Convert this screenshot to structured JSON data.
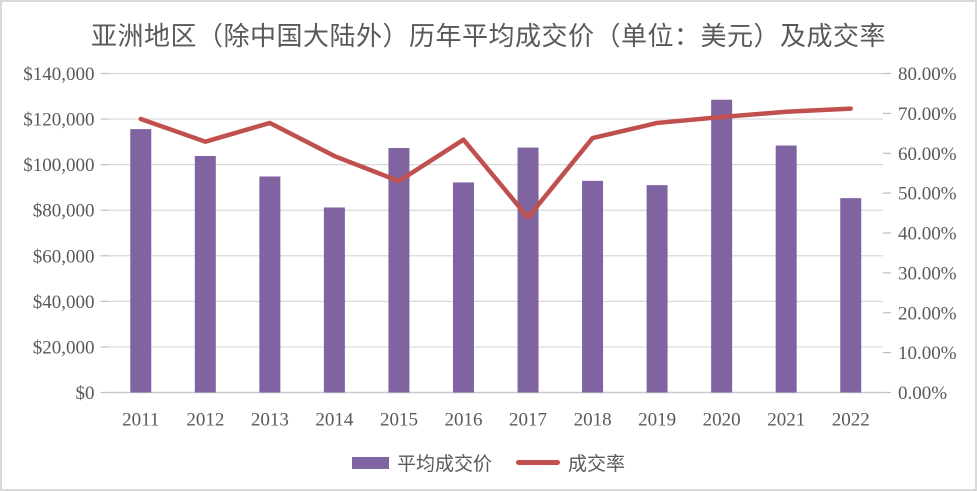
{
  "chart_data": {
    "type": "bar",
    "subtype": "combo-bar-line",
    "title": "亚洲地区（除中国大陆外）历年平均成交价（单位：美元）及成交率",
    "categories": [
      "2011",
      "2012",
      "2013",
      "2014",
      "2015",
      "2016",
      "2017",
      "2018",
      "2019",
      "2020",
      "2021",
      "2022"
    ],
    "series": [
      {
        "name": "平均成交价",
        "type": "bar",
        "axis": "left",
        "color": "#8064A2",
        "values": [
          115600,
          103800,
          94800,
          81200,
          107300,
          92200,
          107500,
          92900,
          91000,
          128500,
          108400,
          85300
        ]
      },
      {
        "name": "成交率",
        "type": "line",
        "axis": "right",
        "color": "#C0504D",
        "values_percent": [
          68.6,
          62.9,
          67.6,
          59.3,
          53.0,
          63.4,
          43.9,
          63.8,
          67.6,
          69.1,
          70.4,
          71.2
        ]
      }
    ],
    "left_axis": {
      "min": 0,
      "max": 140000,
      "step": 20000,
      "tick_labels": [
        "$0",
        "$20,000",
        "$40,000",
        "$60,000",
        "$80,000",
        "$100,000",
        "$120,000",
        "$140,000"
      ]
    },
    "right_axis": {
      "min": 0,
      "max": 80,
      "step": 10,
      "tick_labels": [
        "0.00%",
        "10.00%",
        "20.00%",
        "30.00%",
        "40.00%",
        "50.00%",
        "60.00%",
        "70.00%",
        "80.00%"
      ]
    },
    "grid": true,
    "legend": {
      "position": "bottom",
      "items": [
        {
          "label": "平均成交价",
          "marker": "bar",
          "color": "#8064A2"
        },
        {
          "label": "成交率",
          "marker": "line",
          "color": "#C0504D"
        }
      ]
    }
  },
  "colors": {
    "bar": "#8064A2",
    "line": "#C0504D",
    "text": "#595959",
    "grid": "#D9D9D9",
    "axis_line": "#C9C9C9",
    "tick": "#BFBFBF",
    "frame_border": "#D9D9D9",
    "background": "#FFFFFF"
  }
}
